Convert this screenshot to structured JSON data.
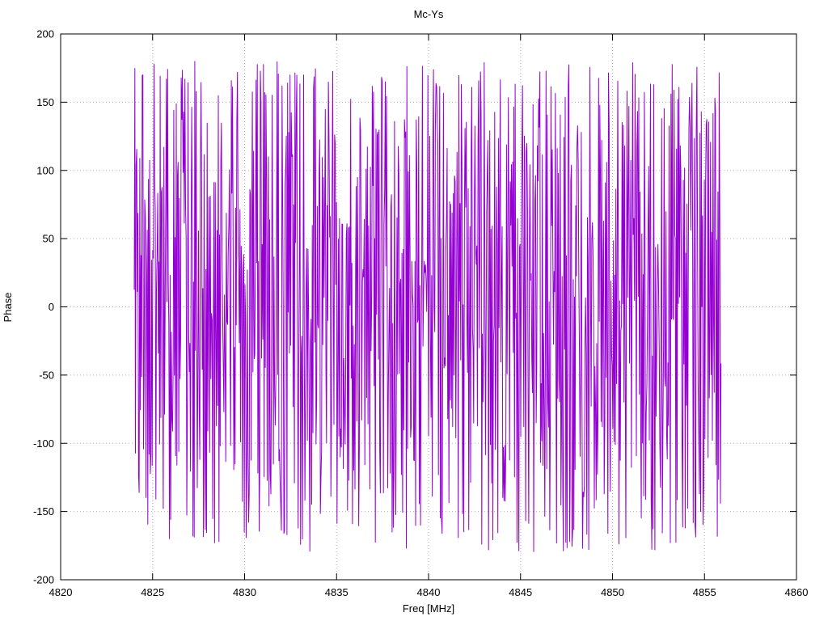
{
  "chart_data": {
    "type": "line",
    "title": "Mc-Ys",
    "xlabel": "Freq [MHz]",
    "ylabel": "Phase",
    "xlim": [
      4820,
      4860
    ],
    "ylim": [
      -200,
      200
    ],
    "x_ticks": [
      4820,
      4825,
      4830,
      4835,
      4840,
      4845,
      4850,
      4855,
      4860
    ],
    "y_ticks": [
      -200,
      -150,
      -100,
      -50,
      0,
      50,
      100,
      150,
      200
    ],
    "grid": "dotted",
    "legend": "none",
    "background_color": "#ffffff",
    "axis_color": "#000000",
    "grid_color": "#b4b4b4",
    "series": [
      {
        "name": "phase",
        "color": "#9400d3",
        "x_start": 4824.0,
        "x_end": 4855.9,
        "n_points": 950,
        "y_min": -180,
        "y_max": 180,
        "behavior": "wrapped-phase-noise",
        "seed": 42
      }
    ]
  }
}
